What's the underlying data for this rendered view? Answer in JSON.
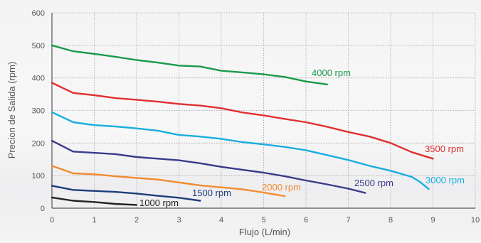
{
  "chart_data": {
    "type": "line",
    "title": "",
    "xlabel": "Flujo (L/min)",
    "ylabel": "Precion de Salida (rpm)",
    "xlim": [
      0,
      10
    ],
    "ylim": [
      0,
      600
    ],
    "x_ticks": [
      "0",
      "1",
      "2",
      "3",
      "4",
      "5",
      "6",
      "7",
      "8",
      "9",
      "10"
    ],
    "y_ticks": [
      "0",
      "100",
      "200",
      "300",
      "400",
      "500",
      "600"
    ],
    "grid": true,
    "legend": "inline labels",
    "series": [
      {
        "name": "4000 rpm",
        "color": "#1a9a4a",
        "x": [
          0,
          0.5,
          1,
          1.5,
          2,
          2.5,
          3,
          3.5,
          4,
          4.5,
          5,
          5.5,
          6,
          6.5
        ],
        "y": [
          500,
          482,
          474,
          465,
          455,
          447,
          438,
          435,
          422,
          417,
          411,
          403,
          389,
          380
        ]
      },
      {
        "name": "3500 rpm",
        "color": "#e03030",
        "x": [
          0,
          0.5,
          1,
          1.5,
          2,
          2.5,
          3,
          3.5,
          4,
          4.5,
          5,
          5.5,
          6,
          6.5,
          7,
          7.5,
          8,
          8.5,
          9
        ],
        "y": [
          385,
          354,
          347,
          338,
          333,
          327,
          320,
          315,
          307,
          294,
          285,
          274,
          264,
          250,
          234,
          220,
          200,
          172,
          152
        ]
      },
      {
        "name": "3000 rpm",
        "color": "#1aaedf",
        "x": [
          0,
          0.5,
          1,
          1.5,
          2,
          2.5,
          3,
          3.5,
          4,
          4.5,
          5,
          5.5,
          6,
          6.5,
          7,
          7.5,
          8,
          8.5,
          8.7,
          8.9
        ],
        "y": [
          295,
          264,
          255,
          251,
          245,
          238,
          225,
          220,
          213,
          203,
          196,
          188,
          178,
          163,
          148,
          130,
          115,
          96,
          80,
          59
        ]
      },
      {
        "name": "2500 rpm",
        "color": "#3a3a8c",
        "x": [
          0,
          0.5,
          1,
          1.5,
          2,
          2.5,
          3,
          3.5,
          4,
          4.5,
          5,
          5.5,
          6,
          6.5,
          7,
          7.4
        ],
        "y": [
          207,
          174,
          170,
          166,
          157,
          152,
          147,
          138,
          127,
          118,
          109,
          98,
          85,
          73,
          60,
          47
        ]
      },
      {
        "name": "2000 rpm",
        "color": "#f28a30",
        "x": [
          0,
          0.5,
          1,
          1.5,
          2,
          2.5,
          3,
          3.5,
          4,
          4.5,
          5,
          5.5
        ],
        "y": [
          130,
          107,
          104,
          98,
          93,
          88,
          79,
          70,
          64,
          58,
          48,
          37
        ]
      },
      {
        "name": "1500 rpm",
        "color": "#1f3d7a",
        "x": [
          0,
          0.5,
          1,
          1.5,
          2,
          2.5,
          3,
          3.5
        ],
        "y": [
          69,
          56,
          53,
          50,
          45,
          38,
          32,
          23
        ]
      },
      {
        "name": "1000 rpm",
        "color": "#222222",
        "x": [
          0,
          0.5,
          1,
          1.5,
          2
        ],
        "y": [
          33,
          23,
          19,
          13,
          10
        ]
      }
    ]
  }
}
